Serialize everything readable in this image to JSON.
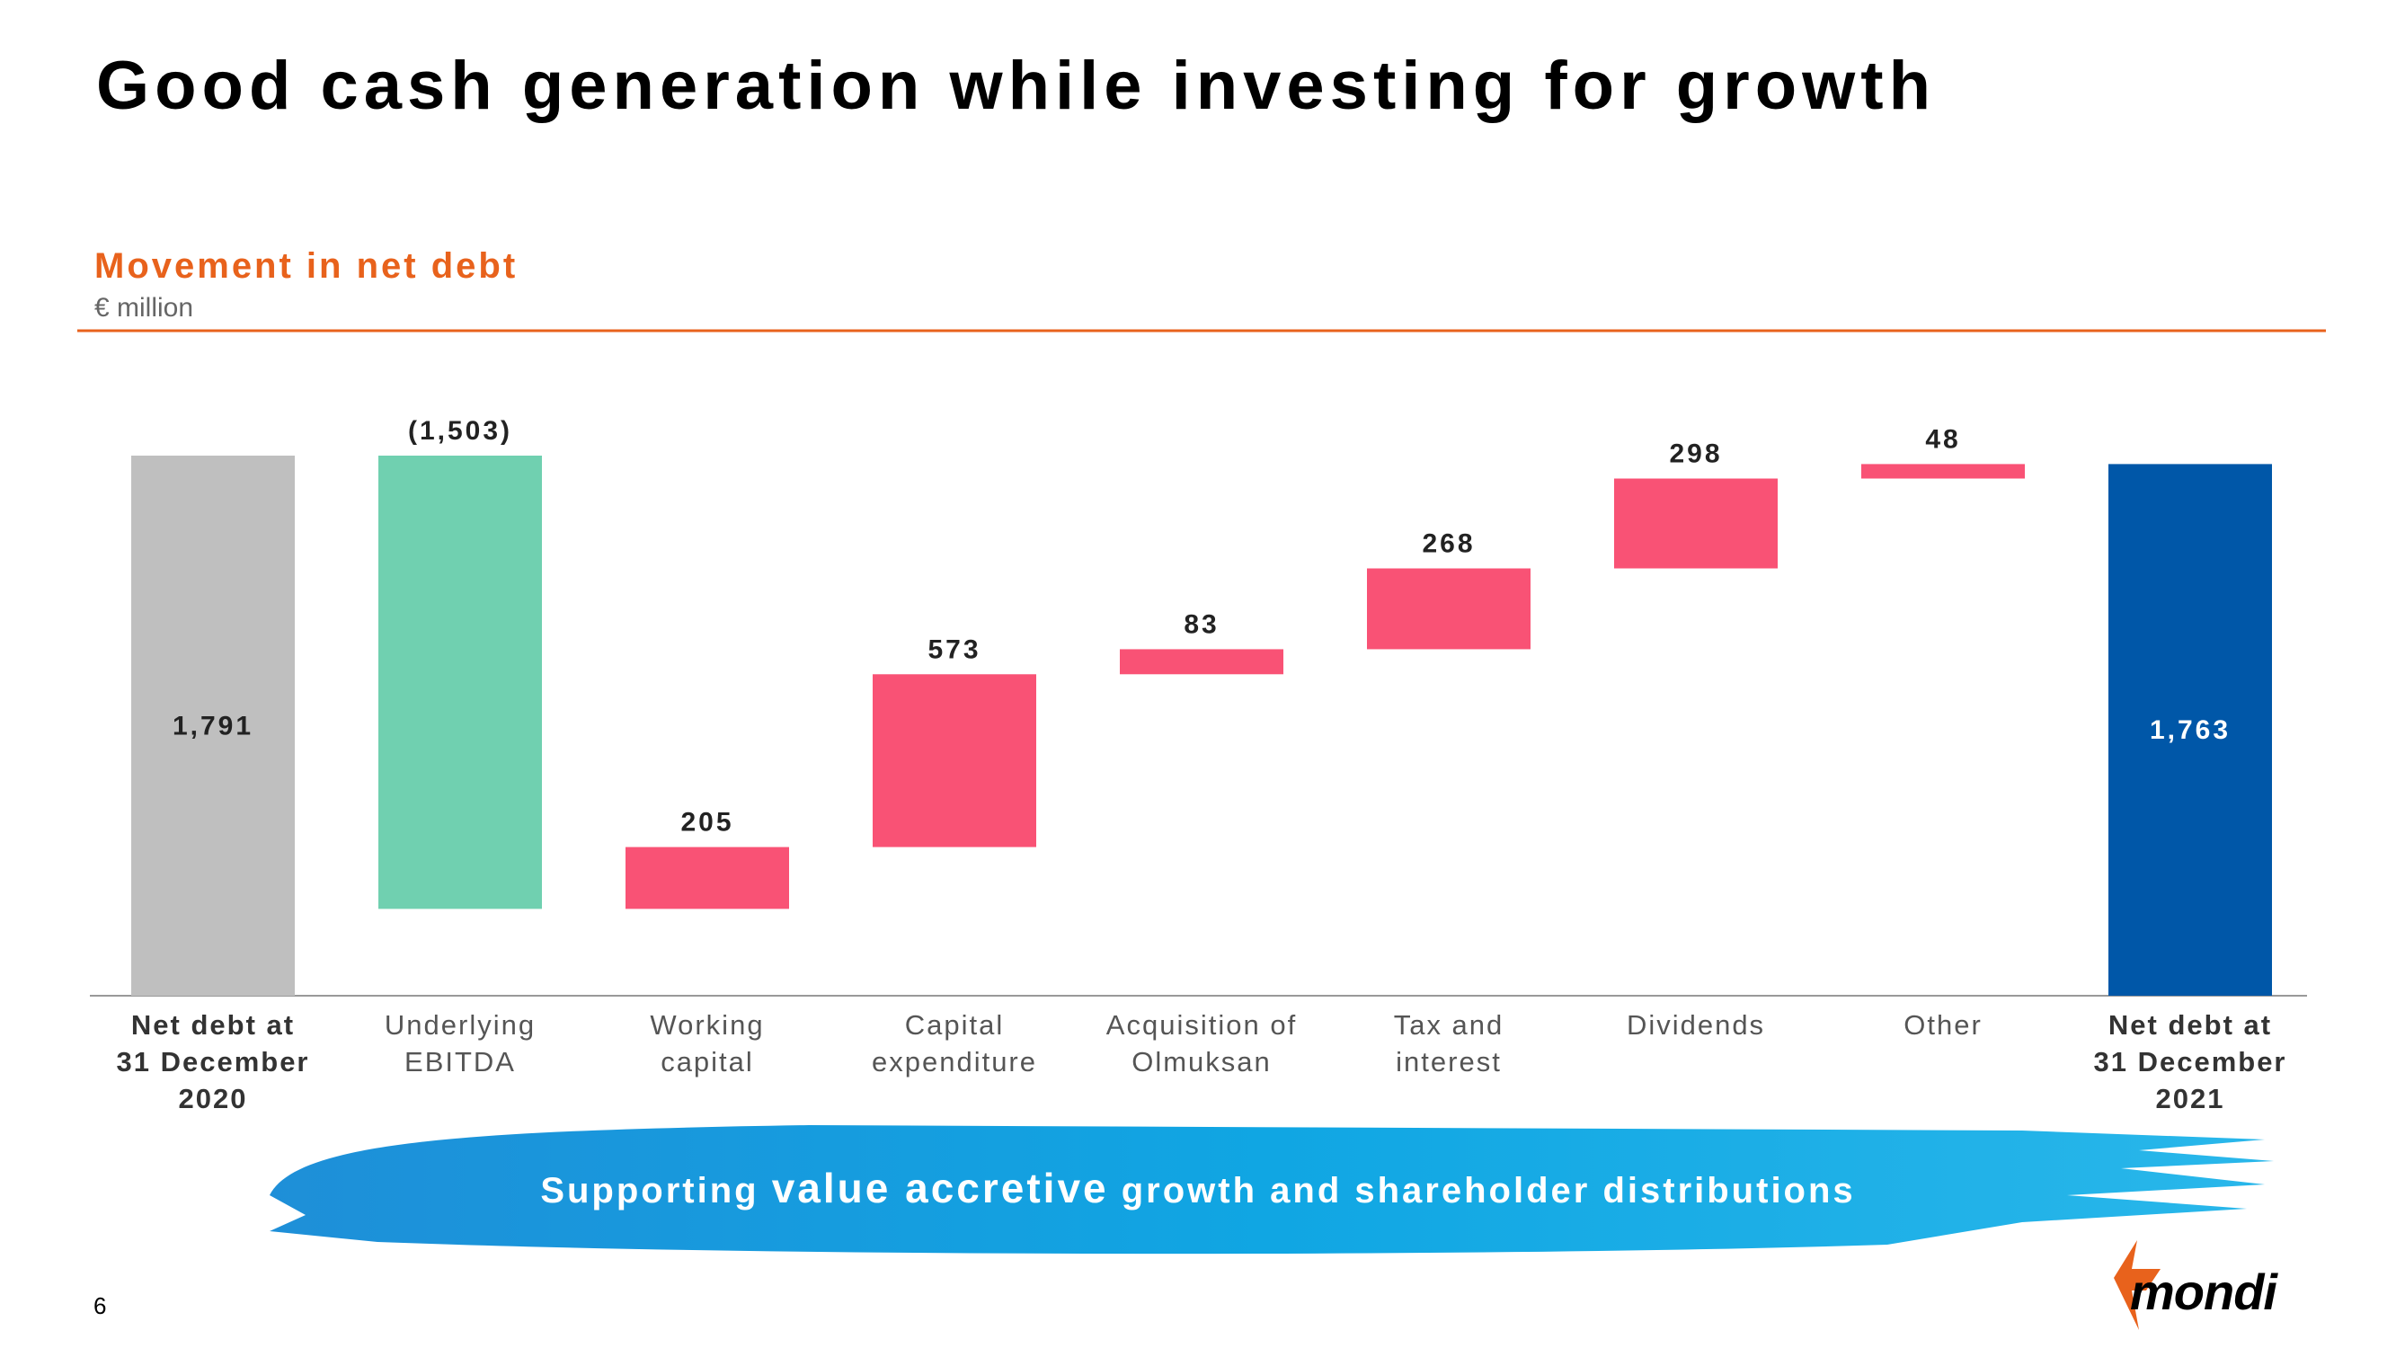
{
  "title": "Good cash generation while investing for growth",
  "page_number": "6",
  "logo": "mondi",
  "banner": [
    "Supporting ",
    "value accretive",
    " growth and shareholder distributions"
  ],
  "chart_data": {
    "type": "waterfall",
    "title": "Movement in net debt",
    "subtitle": "€ million",
    "categories": [
      "Net debt at\n31 December\n2020",
      "Underlying\nEBITDA",
      "Working\ncapital",
      "Capital\nexpenditure",
      "Acquisition of\nOlmuksan",
      "Tax and\ninterest",
      "Dividends",
      "Other",
      "Net debt at\n31 December\n2021"
    ],
    "values": [
      1791,
      -1503,
      205,
      573,
      83,
      268,
      298,
      48,
      1763
    ],
    "value_labels": [
      "1,791",
      "(1,503)",
      "205",
      "573",
      "83",
      "268",
      "298",
      "48",
      "1,763"
    ],
    "colors": {
      "total_start": "#bfbfbf",
      "decrease": "#70d0b0",
      "increase": "#f95275",
      "total_end": "#0057a8"
    }
  }
}
